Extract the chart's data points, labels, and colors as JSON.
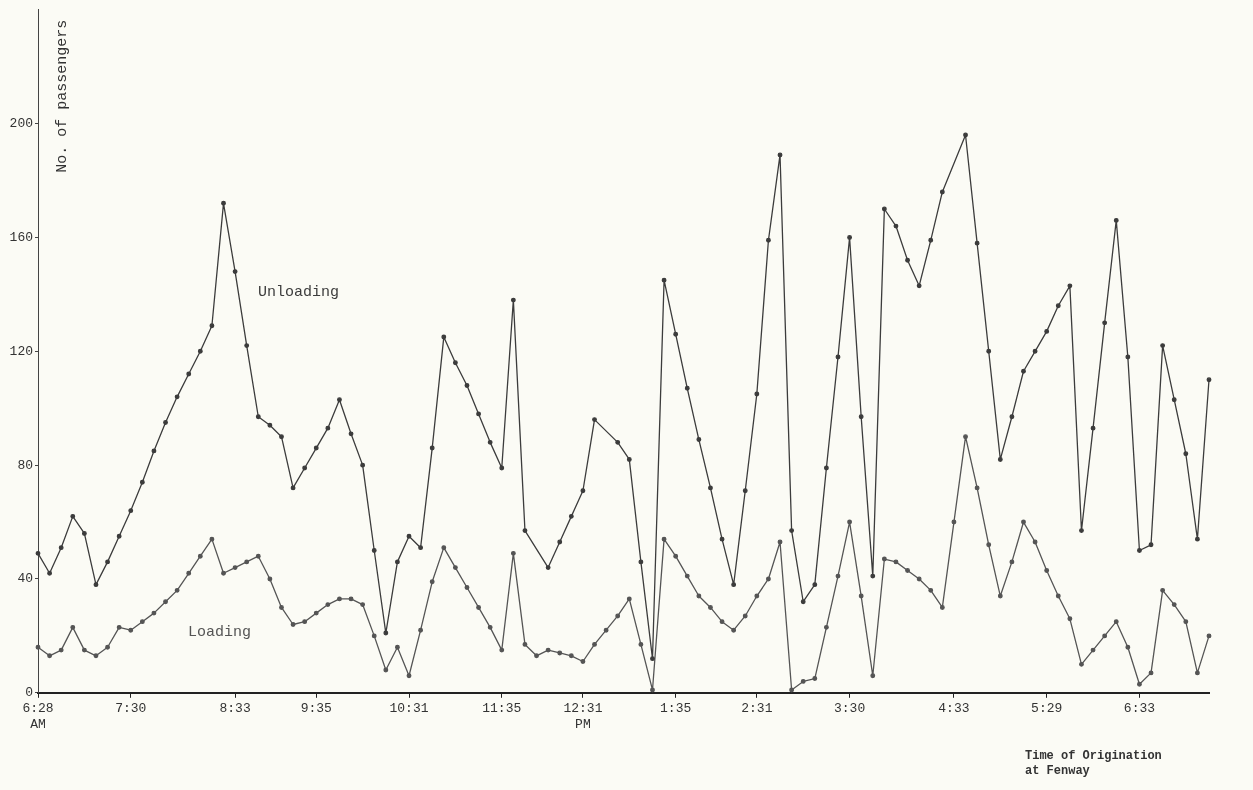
{
  "chart_data": {
    "type": "line",
    "ylabel": "No. of passengers",
    "xlabel": "Time of Origination\nat Fenway",
    "legend": false,
    "marker": "circle",
    "line_style": "solid",
    "categories": [
      "6:28\nAM",
      null,
      null,
      null,
      null,
      null,
      null,
      null,
      "7:30",
      null,
      null,
      null,
      null,
      null,
      null,
      null,
      null,
      "8:33",
      null,
      null,
      null,
      null,
      null,
      null,
      "9:35",
      null,
      null,
      null,
      null,
      null,
      null,
      null,
      "10:31",
      null,
      null,
      null,
      null,
      null,
      null,
      null,
      "11:35",
      null,
      null,
      null,
      null,
      null,
      null,
      "12:31\nPM",
      null,
      null,
      null,
      null,
      null,
      null,
      null,
      "1:35",
      null,
      null,
      null,
      null,
      null,
      null,
      "2:31",
      null,
      null,
      null,
      null,
      null,
      null,
      null,
      "3:30",
      null,
      null,
      null,
      null,
      null,
      null,
      null,
      null,
      "4:33",
      null,
      null,
      null,
      null,
      null,
      null,
      null,
      "5:29",
      null,
      null,
      null,
      null,
      null,
      null,
      null,
      "6:33",
      null,
      null,
      null,
      null,
      null,
      null
    ],
    "ylim": [
      0,
      240
    ],
    "yticks": [
      0,
      40,
      80,
      120,
      160,
      200
    ],
    "series": [
      {
        "name": "Unloading",
        "color": "#3c3c3c",
        "values": [
          49,
          42,
          51,
          62,
          56,
          38,
          46,
          55,
          64,
          74,
          85,
          95,
          104,
          112,
          120,
          129,
          172,
          148,
          122,
          97,
          94,
          90,
          72,
          79,
          86,
          93,
          103,
          91,
          80,
          50,
          21,
          46,
          55,
          51,
          86,
          125,
          116,
          108,
          98,
          88,
          79,
          138,
          57,
          null,
          44,
          53,
          62,
          71,
          96,
          null,
          88,
          82,
          46,
          12,
          145,
          126,
          107,
          89,
          72,
          54,
          38,
          71,
          105,
          159,
          189,
          57,
          32,
          38,
          79,
          118,
          160,
          97,
          41,
          170,
          164,
          152,
          143,
          159,
          176,
          null,
          196,
          158,
          120,
          82,
          97,
          113,
          120,
          127,
          136,
          143,
          57,
          93,
          130,
          166,
          118,
          50,
          52,
          122,
          103,
          84,
          54,
          110
        ]
      },
      {
        "name": "Loading",
        "color": "#555555",
        "values": [
          16,
          13,
          15,
          23,
          15,
          13,
          16,
          23,
          22,
          25,
          28,
          32,
          36,
          42,
          48,
          54,
          42,
          44,
          46,
          48,
          40,
          30,
          24,
          25,
          28,
          31,
          33,
          33,
          31,
          20,
          8,
          16,
          6,
          22,
          39,
          51,
          44,
          37,
          30,
          23,
          15,
          49,
          17,
          13,
          15,
          14,
          13,
          11,
          17,
          22,
          27,
          33,
          17,
          1,
          54,
          48,
          41,
          34,
          30,
          25,
          22,
          27,
          34,
          40,
          53,
          1,
          4,
          5,
          23,
          41,
          60,
          34,
          6,
          47,
          46,
          43,
          40,
          36,
          30,
          60,
          90,
          72,
          52,
          34,
          46,
          60,
          53,
          43,
          34,
          26,
          10,
          15,
          20,
          25,
          16,
          3,
          7,
          36,
          31,
          25,
          7,
          20
        ]
      }
    ]
  }
}
